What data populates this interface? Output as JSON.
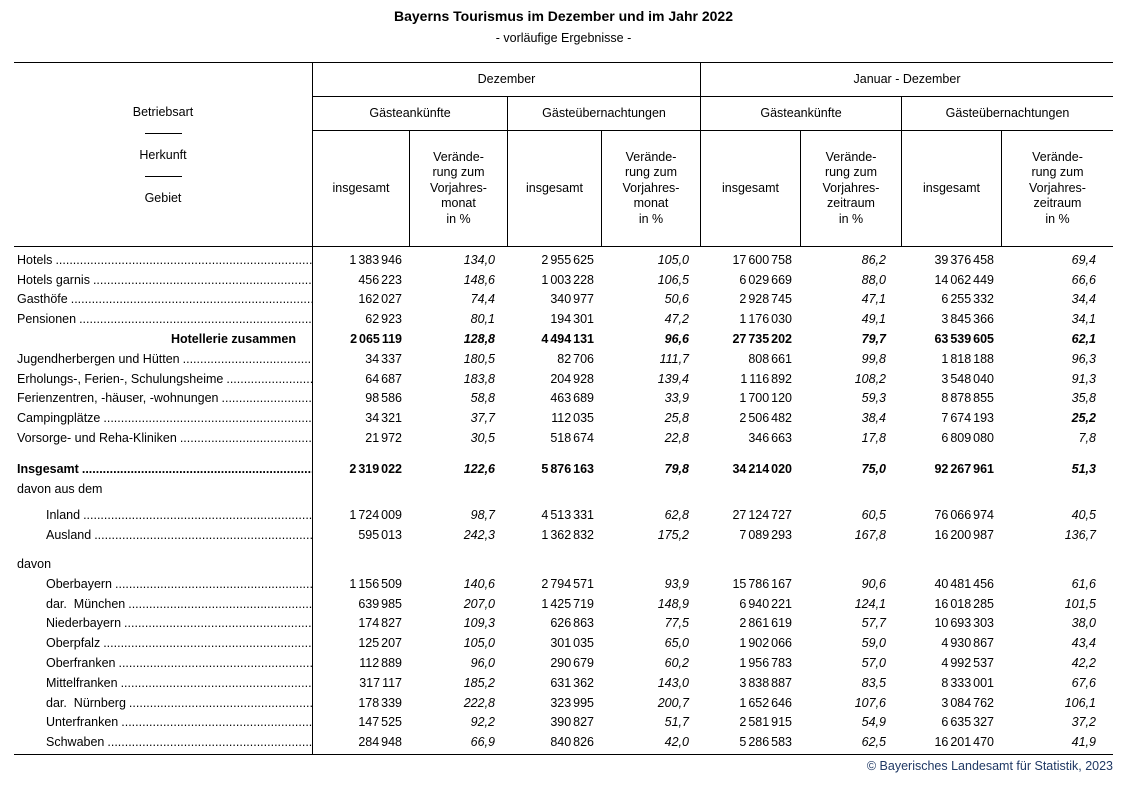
{
  "title": "Bayerns Tourismus im Dezember und im Jahr 2022",
  "subtitle": "- vorläufige Ergebnisse -",
  "stub": {
    "line1": "Betriebsart",
    "line2": "Herkunft",
    "line3": "Gebiet"
  },
  "columns": {
    "group_december": "Dezember",
    "group_year": "Januar - Dezember",
    "arrivals": "Gästeankünfte",
    "overnights": "Gästeübernachtungen",
    "total": "insgesamt",
    "change_month": "Verände-\nrung zum\nVorjahres-\nmonat\nin %",
    "change_period": "Verände-\nrung zum\nVorjahres-\nzeitraum\nin %"
  },
  "rows": [
    {
      "label": "Hotels",
      "type": "data",
      "indent": 0,
      "bold": false,
      "leader": true,
      "values": [
        "1 383 946",
        "134,0",
        "2 955 625",
        "105,0",
        "17 600 758",
        "86,2",
        "39 376 458",
        "69,4"
      ]
    },
    {
      "label": "Hotels garnis",
      "type": "data",
      "indent": 0,
      "bold": false,
      "leader": true,
      "values": [
        "456 223",
        "148,6",
        "1 003 228",
        "106,5",
        "6 029 669",
        "88,0",
        "14 062 449",
        "66,6"
      ]
    },
    {
      "label": "Gasthöfe",
      "type": "data",
      "indent": 0,
      "bold": false,
      "leader": true,
      "values": [
        "162 027",
        "74,4",
        "340 977",
        "50,6",
        "2 928 745",
        "47,1",
        "6 255 332",
        "34,4"
      ]
    },
    {
      "label": "Pensionen",
      "type": "data",
      "indent": 0,
      "bold": false,
      "leader": true,
      "values": [
        "62 923",
        "80,1",
        "194 301",
        "47,2",
        "1 176 030",
        "49,1",
        "3 845 366",
        "34,1"
      ]
    },
    {
      "label": "Hotellerie zusammen",
      "type": "data",
      "indent": 0,
      "bold": true,
      "leader": false,
      "label_align": "right",
      "values": [
        "2 065 119",
        "128,8",
        "4 494 131",
        "96,6",
        "27 735 202",
        "79,7",
        "63 539 605",
        "62,1"
      ]
    },
    {
      "label": "Jugendherbergen und Hütten",
      "type": "data",
      "indent": 0,
      "bold": false,
      "leader": true,
      "values": [
        "34 337",
        "180,5",
        "82 706",
        "111,7",
        "808 661",
        "99,8",
        "1 818 188",
        "96,3"
      ]
    },
    {
      "label": "Erholungs-, Ferien-, Schulungsheime",
      "type": "data",
      "indent": 0,
      "bold": false,
      "leader": true,
      "values": [
        "64 687",
        "183,8",
        "204 928",
        "139,4",
        "1 116 892",
        "108,2",
        "3 548 040",
        "91,3"
      ]
    },
    {
      "label": "Ferienzentren, -häuser, -wohnungen",
      "type": "data",
      "indent": 0,
      "bold": false,
      "leader": true,
      "values": [
        "98 586",
        "58,8",
        "463 689",
        "33,9",
        "1 700 120",
        "59,3",
        "8 878 855",
        "35,8"
      ]
    },
    {
      "label": "Campingplätze",
      "type": "data",
      "indent": 0,
      "bold": false,
      "leader": true,
      "bold_cells": [
        7
      ],
      "values": [
        "34 321",
        "37,7",
        "112 035",
        "25,8",
        "2 506 482",
        "38,4",
        "7 674 193",
        "25,2"
      ]
    },
    {
      "label": "Vorsorge- und Reha-Kliniken",
      "type": "data",
      "indent": 0,
      "bold": false,
      "leader": true,
      "values": [
        "21 972",
        "30,5",
        "518 674",
        "22,8",
        "346 663",
        "17,8",
        "6 809 080",
        "7,8"
      ]
    },
    {
      "label": "Insgesamt",
      "type": "data",
      "indent": 0,
      "bold": true,
      "leader": true,
      "gap": "lg",
      "values": [
        "2 319 022",
        "122,6",
        "5 876 163",
        "79,8",
        "34 214 020",
        "75,0",
        "92 267 961",
        "51,3"
      ]
    },
    {
      "label": "davon aus dem",
      "type": "section",
      "indent": 0,
      "bold": false,
      "leader": false,
      "values": []
    },
    {
      "label": "Inland",
      "type": "data",
      "indent": 1,
      "bold": false,
      "leader": true,
      "gap": "sm",
      "values": [
        "1 724 009",
        "98,7",
        "4 513 331",
        "62,8",
        "27 124 727",
        "60,5",
        "76 066 974",
        "40,5"
      ]
    },
    {
      "label": "Ausland",
      "type": "data",
      "indent": 1,
      "bold": false,
      "leader": true,
      "values": [
        "595 013",
        "242,3",
        "1 362 832",
        "175,2",
        "7 089 293",
        "167,8",
        "16 200 987",
        "136,7"
      ]
    },
    {
      "label": "davon",
      "type": "section",
      "indent": 0,
      "bold": false,
      "leader": false,
      "gap": "md",
      "values": []
    },
    {
      "label": "Oberbayern",
      "type": "data",
      "indent": 1,
      "bold": false,
      "leader": true,
      "values": [
        "1 156 509",
        "140,6",
        "2 794 571",
        "93,9",
        "15 786 167",
        "90,6",
        "40 481 456",
        "61,6"
      ]
    },
    {
      "label": "dar.  München",
      "type": "data",
      "indent": 1,
      "bold": false,
      "leader": true,
      "values": [
        "639 985",
        "207,0",
        "1 425 719",
        "148,9",
        "6 940 221",
        "124,1",
        "16 018 285",
        "101,5"
      ]
    },
    {
      "label": "Niederbayern",
      "type": "data",
      "indent": 1,
      "bold": false,
      "leader": true,
      "values": [
        "174 827",
        "109,3",
        "626 863",
        "77,5",
        "2 861 619",
        "57,7",
        "10 693 303",
        "38,0"
      ]
    },
    {
      "label": "Oberpfalz",
      "type": "data",
      "indent": 1,
      "bold": false,
      "leader": true,
      "values": [
        "125 207",
        "105,0",
        "301 035",
        "65,0",
        "1 902 066",
        "59,0",
        "4 930 867",
        "43,4"
      ]
    },
    {
      "label": "Oberfranken",
      "type": "data",
      "indent": 1,
      "bold": false,
      "leader": true,
      "values": [
        "112 889",
        "96,0",
        "290 679",
        "60,2",
        "1 956 783",
        "57,0",
        "4 992 537",
        "42,2"
      ]
    },
    {
      "label": "Mittelfranken",
      "type": "data",
      "indent": 1,
      "bold": false,
      "leader": true,
      "values": [
        "317 117",
        "185,2",
        "631 362",
        "143,0",
        "3 838 887",
        "83,5",
        "8 333 001",
        "67,6"
      ]
    },
    {
      "label": "dar.  Nürnberg",
      "type": "data",
      "indent": 1,
      "bold": false,
      "leader": true,
      "values": [
        "178 339",
        "222,8",
        "323 995",
        "200,7",
        "1 652 646",
        "107,6",
        "3 084 762",
        "106,1"
      ]
    },
    {
      "label": "Unterfranken",
      "type": "data",
      "indent": 1,
      "bold": false,
      "leader": true,
      "values": [
        "147 525",
        "92,2",
        "390 827",
        "51,7",
        "2 581 915",
        "54,9",
        "6 635 327",
        "37,2"
      ]
    },
    {
      "label": "Schwaben",
      "type": "data",
      "indent": 1,
      "bold": false,
      "leader": true,
      "values": [
        "284 948",
        "66,9",
        "840 826",
        "42,0",
        "5 286 583",
        "62,5",
        "16 201 470",
        "41,9"
      ]
    }
  ],
  "footer": "© Bayerisches Landesamt für Statistik, 2023",
  "colors": {
    "footer_text": "#1F3864",
    "rule": "#000000"
  }
}
